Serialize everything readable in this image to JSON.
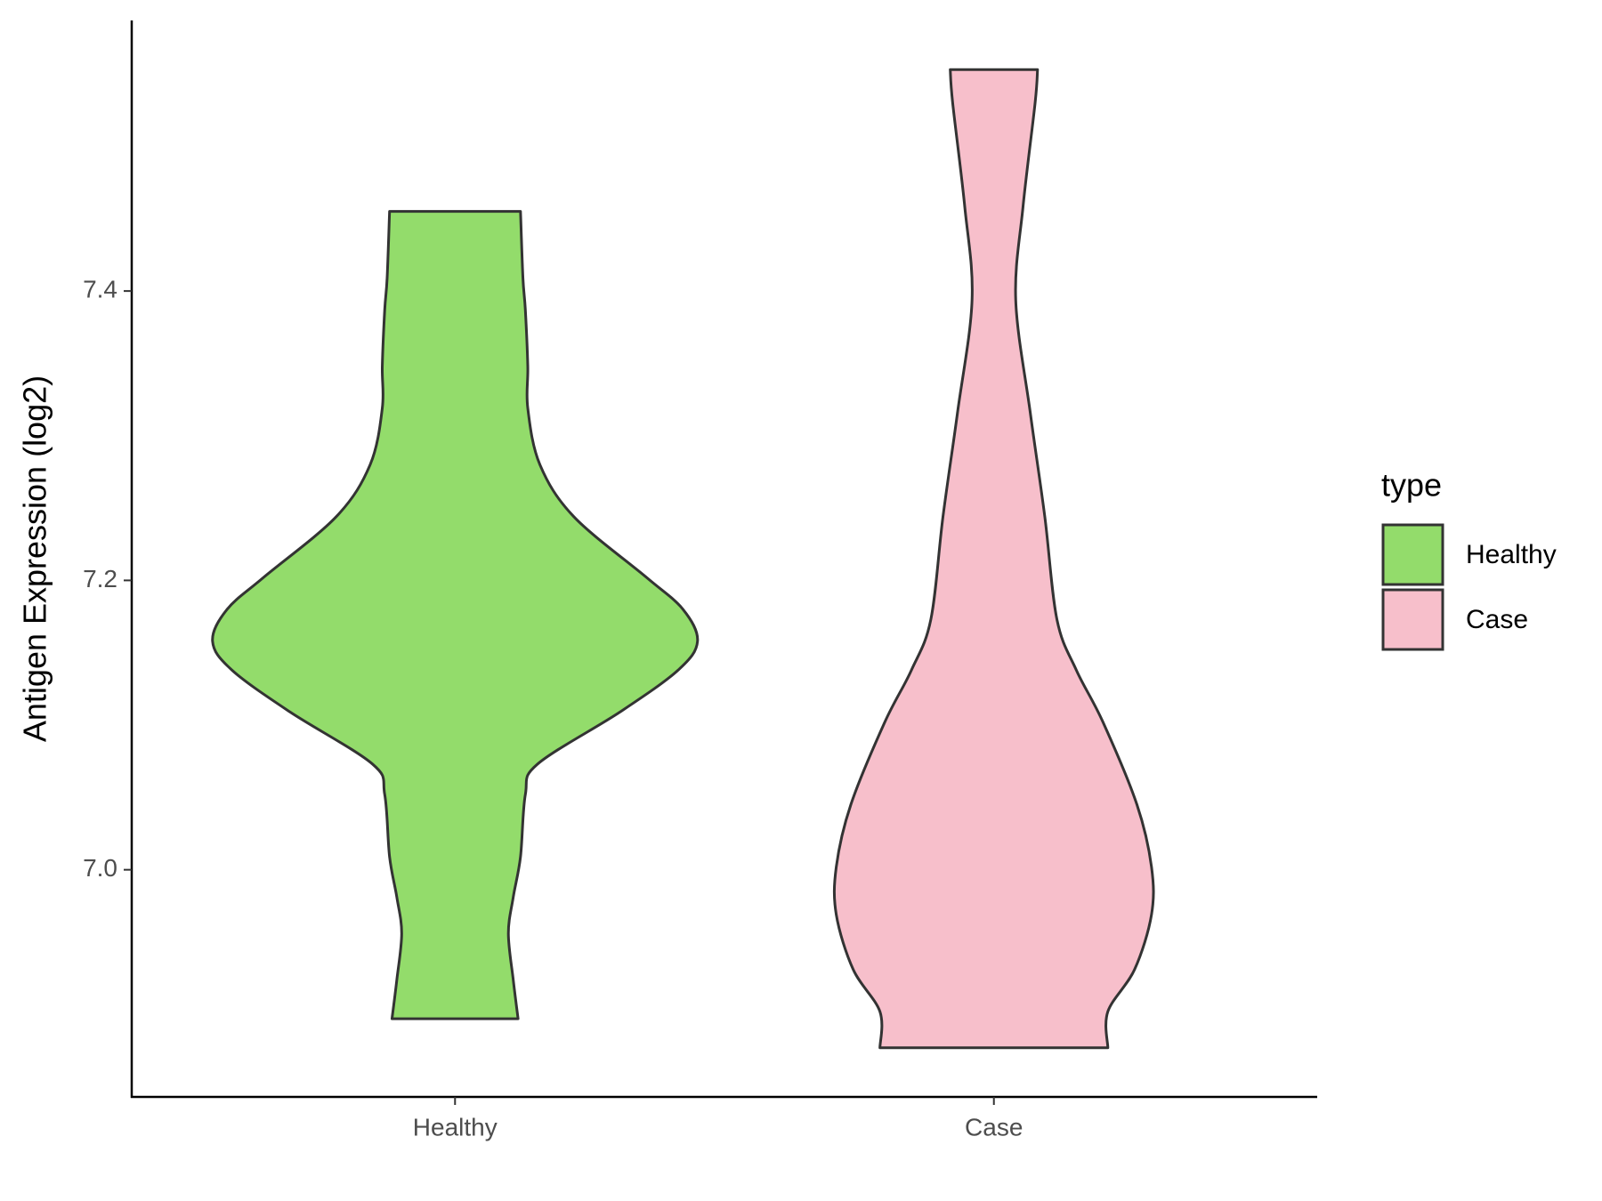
{
  "chart_data": {
    "type": "violin",
    "y_label": "Antigen Expression (log2)",
    "categories": [
      "Healthy",
      "Case"
    ],
    "legend_title": "type",
    "legend_position": "right",
    "ylim": [
      6.843,
      7.587
    ],
    "yticks": [
      {
        "value": 7,
        "label": "7.0"
      },
      7.2,
      7.4
    ],
    "series": [
      {
        "name": "Healthy",
        "color": "#93dc6b",
        "y": [
          7.455,
          7.409,
          7.387,
          7.348,
          7.319,
          7.28,
          7.244,
          7.202,
          7.18,
          7.158,
          7.138,
          7.109,
          7.073,
          7.052,
          7.009,
          6.981,
          6.956,
          6.924,
          6.897
        ],
        "density": [
          0.27,
          0.28,
          0.29,
          0.3,
          0.3,
          0.35,
          0.49,
          0.79,
          0.94,
          1,
          0.92,
          0.68,
          0.34,
          0.29,
          0.27,
          0.24,
          0.22,
          0.24,
          0.26
        ]
      },
      {
        "name": "Case",
        "color": "#f7bfcb",
        "y": [
          7.553,
          7.53,
          7.458,
          7.394,
          7.316,
          7.244,
          7.173,
          7.138,
          7.102,
          7.045,
          7.002,
          6.969,
          6.931,
          6.902,
          6.877
        ],
        "density": [
          0.18,
          0.17,
          0.12,
          0.09,
          0.15,
          0.21,
          0.26,
          0.34,
          0.45,
          0.59,
          0.65,
          0.65,
          0.58,
          0.47,
          0.47
        ]
      }
    ]
  }
}
